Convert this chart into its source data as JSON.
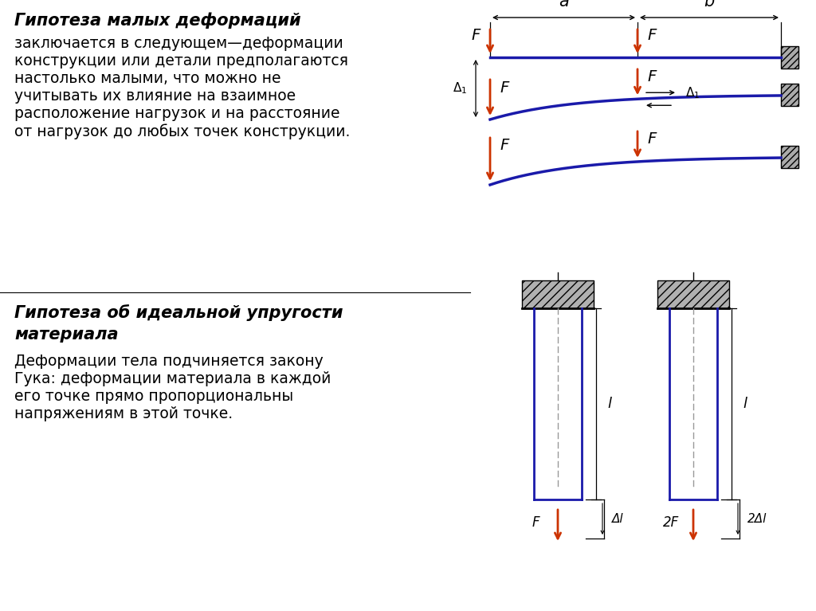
{
  "bg_color": "#ffffff",
  "title1_bold": "Гипотеза малых деформаций",
  "text1_lines": [
    "заключается в следующем—деформации",
    "конструкции или детали предполагаются",
    "настолько малыми, что можно не",
    "учитывать их влияние на взаимное",
    "расположение нагрузок и на расстояние",
    "от нагрузок до любых точек конструкции."
  ],
  "title2_line1": "Гипотеза об идеальной упругости",
  "title2_line2": "материала",
  "text2_lines": [
    "Деформации тела подчиняется закону",
    "Гука: деформации материала в каждой",
    "его точке прямо пропорциональны",
    "напряжениям в этой точке."
  ],
  "arrow_color": "#cc3300",
  "beam_color": "#1a1aaa",
  "line_color": "#000000",
  "hatch_color": "#999999"
}
